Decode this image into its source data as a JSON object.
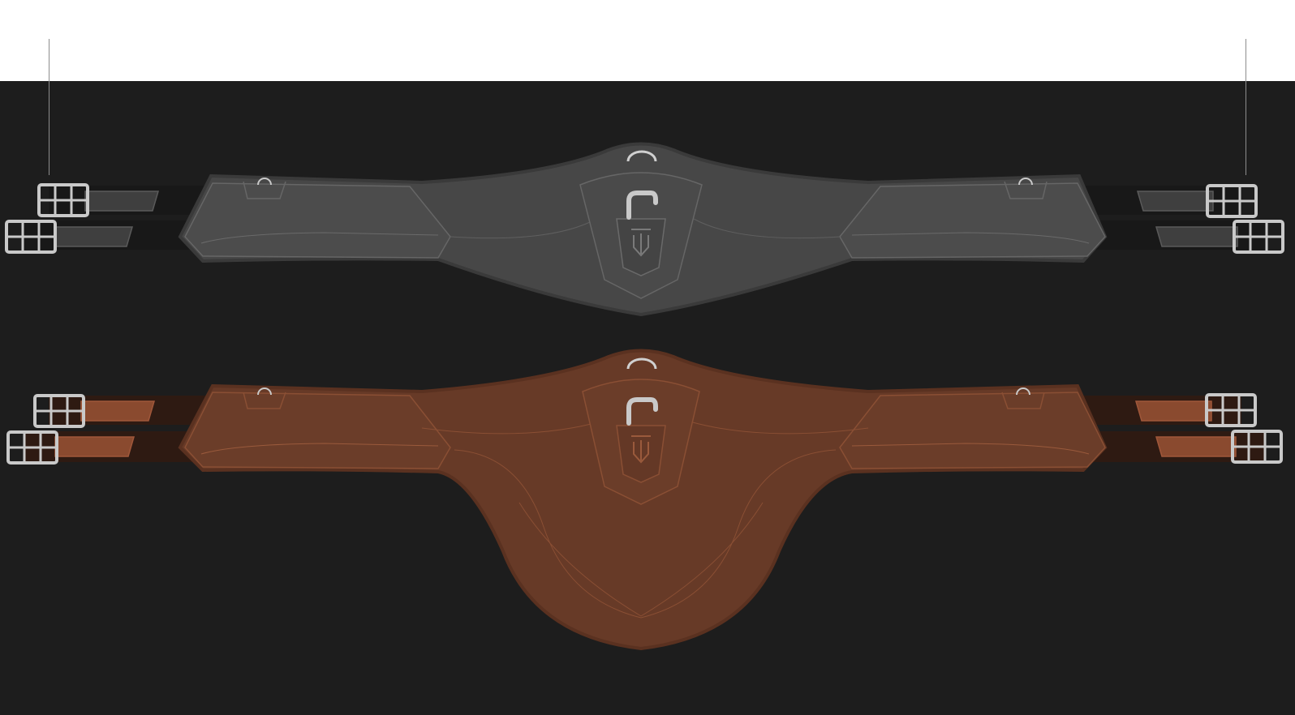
{
  "colors": {
    "background_top": "#ffffff",
    "background_stage": "#1d1d1d",
    "measure_line": "#8d8d8d",
    "black_leather": "#474747",
    "black_leather_dark": "#3a3a3a",
    "black_strap": "#181818",
    "brown_leather": "#673a27",
    "brown_leather_dark": "#5a3120",
    "brown_strap": "#2e1a12",
    "brown_elastic_tab": "#8a4a2f",
    "buckle_silver": "#c9c9c9",
    "stitching_black": "#6a6a6a",
    "stitching_brown": "#9a5a3c"
  },
  "products": [
    {
      "variant": "black",
      "shape": "short-curved"
    },
    {
      "variant": "brown",
      "shape": "stud-guard"
    }
  ],
  "icons": [
    "buckle-icon",
    "d-ring-icon",
    "brand-logo-icon"
  ]
}
